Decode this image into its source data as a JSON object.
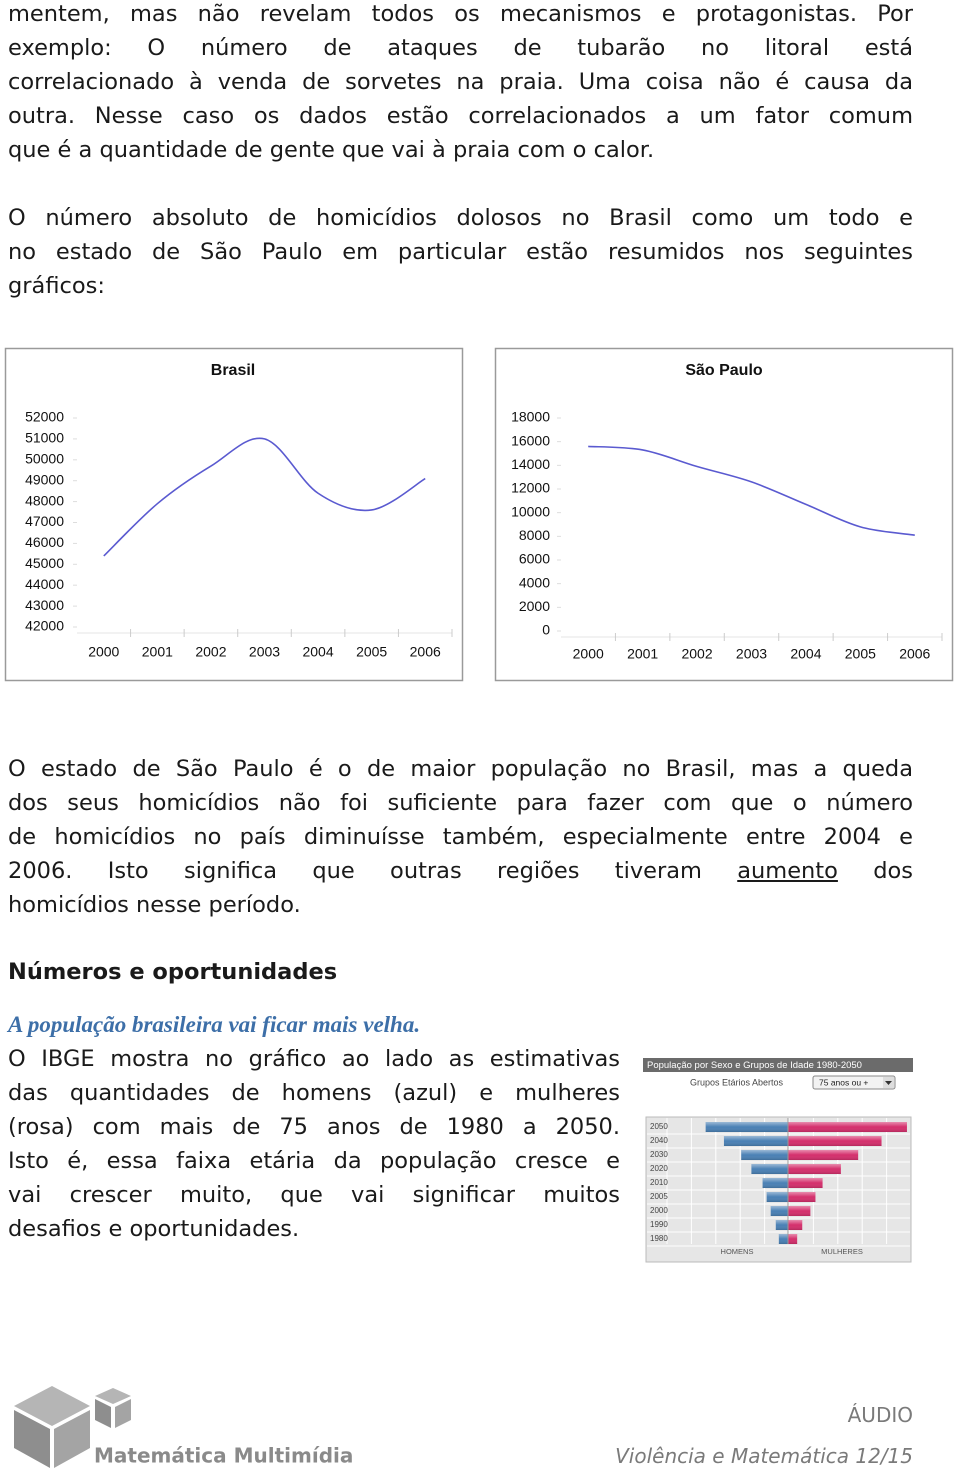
{
  "document": {
    "paragraph_1": [
      "mentem, mas não revelam todos os mecanismos e protagonistas. Por",
      "exemplo: O número de ataques de tubarão no litoral está",
      "correlacionado à venda de sorvetes na praia. Uma coisa não é causa da",
      "outra. Nesse caso os dados estão correlacionados a um fator comum",
      "que é a quantidade de gente que vai à praia com o calor."
    ],
    "paragraph_2": [
      "O número absoluto de homicídios dolosos no Brasil como um todo e",
      "no estado de São Paulo em particular estão resumidos nos seguintes",
      "gráficos:"
    ],
    "paragraph_3": [
      "O estado de São Paulo é o de maior população no Brasil, mas a queda",
      "dos seus homicídios não foi suficiente para fazer com que o número",
      "de homicídios no país diminuísse também, especialmente entre 2004 e",
      [
        "2006. Isto significa que outras regiões tiveram ",
        "aumento",
        " dos"
      ],
      "homicídios nesse período."
    ],
    "heading": "Números e oportunidades",
    "subheading": "A população brasileira vai ficar mais velha.",
    "paragraph_4": [
      "O IBGE mostra no gráfico ao lado as estimativas",
      "das quantidades de homens (azul) e mulheres",
      "(rosa) com mais de 75 anos de 1980 a 2050.",
      "Isto é, essa faixa etária da população cresce e",
      "vai crescer muito, que vai significar muitos",
      "desafios e oportunidades."
    ],
    "footer": {
      "audio": "ÁUDIO",
      "page": "Violência e Matemática 12/15",
      "logo": "Matemática Multimídia"
    }
  },
  "chart_data": [
    {
      "type": "line",
      "title": "Brasil",
      "categories": [
        "2000",
        "2001",
        "2002",
        "2003",
        "2004",
        "2005",
        "2006"
      ],
      "values": [
        45400,
        47900,
        49700,
        51000,
        48400,
        47600,
        49100
      ],
      "color": "#5a5ad0",
      "ylim": [
        42000,
        52000
      ],
      "yticks": [
        42000,
        43000,
        44000,
        45000,
        46000,
        47000,
        48000,
        49000,
        50000,
        51000,
        52000
      ]
    },
    {
      "type": "line",
      "title": "São Paulo",
      "categories": [
        "2000",
        "2001",
        "2002",
        "2003",
        "2004",
        "2005",
        "2006"
      ],
      "values": [
        15600,
        15300,
        13900,
        12600,
        10700,
        8800,
        8100
      ],
      "color": "#5a5ad0",
      "ylim": [
        0,
        18000
      ],
      "yticks": [
        0,
        2000,
        4000,
        6000,
        8000,
        10000,
        12000,
        14000,
        16000,
        18000
      ]
    },
    {
      "type": "pyramid",
      "title": "População por Sexo e Grupos de Idade 1980-2050",
      "subtitle": "Grupos Etários Abertos",
      "selector": "75 anos ou +",
      "categories": [
        "2050",
        "2040",
        "2030",
        "2020",
        "2010",
        "2005",
        "2000",
        "1990",
        "1980"
      ],
      "series": [
        {
          "name": "HOMENS",
          "color": "#4a80b4",
          "values": [
            81,
            63,
            46,
            36,
            25,
            21,
            17,
            12,
            9
          ]
        },
        {
          "name": "MULHERES",
          "color": "#d42f6c",
          "values": [
            117,
            92,
            69,
            52,
            34,
            27,
            22,
            14,
            9
          ]
        }
      ],
      "xlim": [
        0,
        120
      ]
    }
  ]
}
